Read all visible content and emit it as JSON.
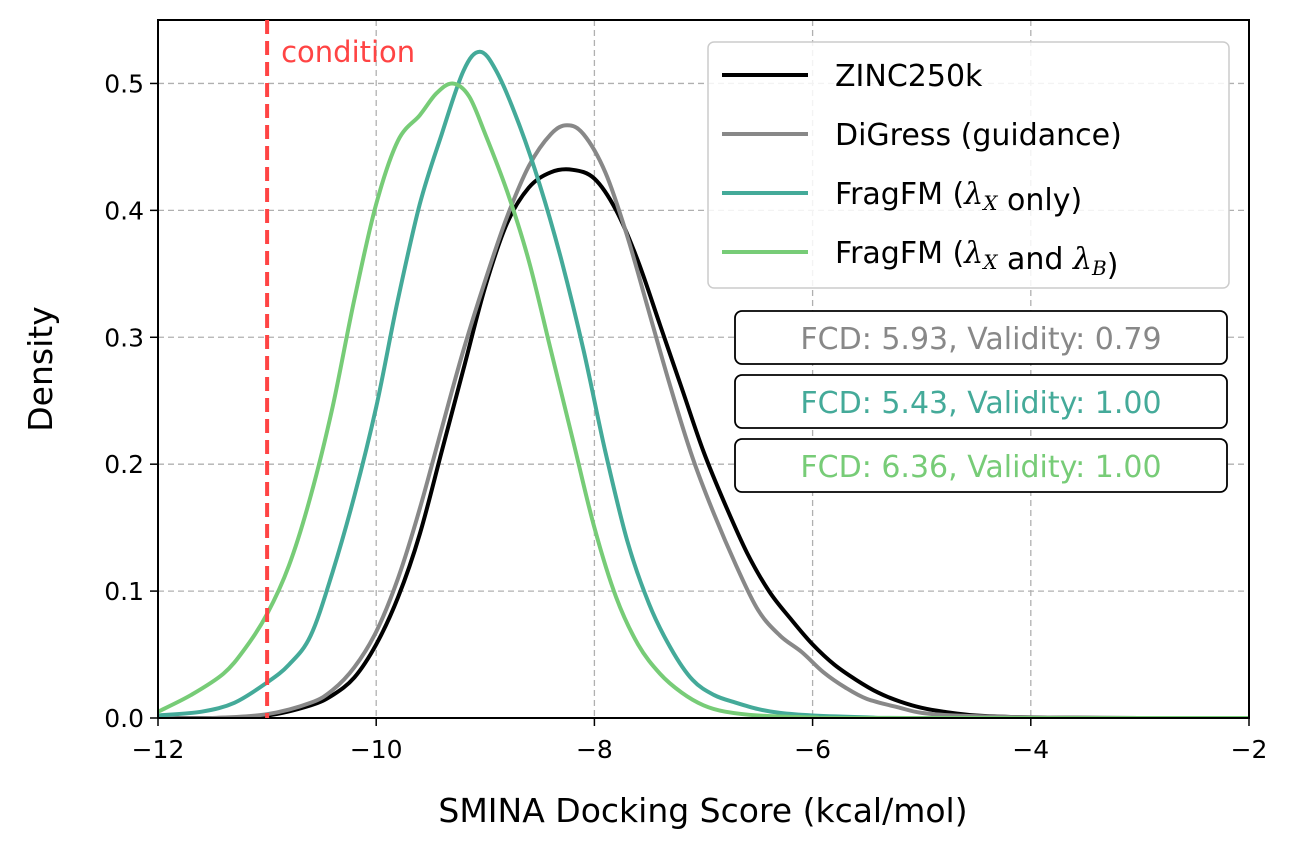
{
  "chart_data": {
    "type": "line",
    "title": "",
    "xlabel": "SMINA Docking Score (kcal/mol)",
    "ylabel": "Density",
    "xlim": [
      -12,
      -2
    ],
    "ylim": [
      0,
      0.55
    ],
    "grid": true,
    "legend_placement": "top-right",
    "x_ticks": [
      -12,
      -10,
      -8,
      -6,
      -4,
      -2
    ],
    "x_tick_labels": [
      "−12",
      "−10",
      "−8",
      "−6",
      "−4",
      "−2"
    ],
    "y_ticks": [
      0.0,
      0.1,
      0.2,
      0.3,
      0.4,
      0.5
    ],
    "y_tick_labels": [
      "0.0",
      "0.1",
      "0.2",
      "0.3",
      "0.4",
      "0.5"
    ],
    "condition": {
      "x": -11,
      "label": "condition",
      "color": "#ff4444"
    },
    "series": [
      {
        "name": "ZINC250k",
        "legend_parts": [
          {
            "t": "ZINC250k",
            "i": false
          }
        ],
        "color": "#000000",
        "points": [
          [
            -12,
            0
          ],
          [
            -11.5,
            0
          ],
          [
            -11,
            0.002
          ],
          [
            -10.6,
            0.01
          ],
          [
            -10.4,
            0.018
          ],
          [
            -10.2,
            0.032
          ],
          [
            -10,
            0.058
          ],
          [
            -9.8,
            0.095
          ],
          [
            -9.6,
            0.145
          ],
          [
            -9.4,
            0.21
          ],
          [
            -9.2,
            0.275
          ],
          [
            -9,
            0.34
          ],
          [
            -8.8,
            0.39
          ],
          [
            -8.6,
            0.418
          ],
          [
            -8.4,
            0.43
          ],
          [
            -8.2,
            0.432
          ],
          [
            -8,
            0.425
          ],
          [
            -7.8,
            0.4
          ],
          [
            -7.6,
            0.36
          ],
          [
            -7.4,
            0.31
          ],
          [
            -7.2,
            0.26
          ],
          [
            -7,
            0.21
          ],
          [
            -6.8,
            0.168
          ],
          [
            -6.6,
            0.13
          ],
          [
            -6.4,
            0.1
          ],
          [
            -6.2,
            0.078
          ],
          [
            -6,
            0.058
          ],
          [
            -5.8,
            0.042
          ],
          [
            -5.6,
            0.03
          ],
          [
            -5.4,
            0.02
          ],
          [
            -5.2,
            0.013
          ],
          [
            -5,
            0.008
          ],
          [
            -4.8,
            0.005
          ],
          [
            -4.5,
            0.002
          ],
          [
            -4,
            0.0005
          ],
          [
            -3,
            0
          ],
          [
            -2,
            0
          ]
        ]
      },
      {
        "name": "DiGress (guidance)",
        "legend_parts": [
          {
            "t": "DiGress (guidance)",
            "i": false
          }
        ],
        "color": "#888888",
        "points": [
          [
            -12,
            0
          ],
          [
            -11.5,
            0
          ],
          [
            -11,
            0.003
          ],
          [
            -10.6,
            0.012
          ],
          [
            -10.4,
            0.022
          ],
          [
            -10.2,
            0.04
          ],
          [
            -10,
            0.068
          ],
          [
            -9.8,
            0.11
          ],
          [
            -9.6,
            0.165
          ],
          [
            -9.4,
            0.228
          ],
          [
            -9.2,
            0.29
          ],
          [
            -9,
            0.345
          ],
          [
            -8.8,
            0.395
          ],
          [
            -8.6,
            0.435
          ],
          [
            -8.4,
            0.46
          ],
          [
            -8.25,
            0.467
          ],
          [
            -8.1,
            0.46
          ],
          [
            -7.9,
            0.43
          ],
          [
            -7.7,
            0.38
          ],
          [
            -7.5,
            0.32
          ],
          [
            -7.3,
            0.26
          ],
          [
            -7.1,
            0.205
          ],
          [
            -6.9,
            0.16
          ],
          [
            -6.7,
            0.12
          ],
          [
            -6.5,
            0.085
          ],
          [
            -6.3,
            0.065
          ],
          [
            -6.1,
            0.052
          ],
          [
            -5.9,
            0.036
          ],
          [
            -5.7,
            0.024
          ],
          [
            -5.5,
            0.015
          ],
          [
            -5.2,
            0.008
          ],
          [
            -5,
            0.004
          ],
          [
            -4.7,
            0.002
          ],
          [
            -4,
            0.0005
          ],
          [
            -3,
            0
          ],
          [
            -2,
            0
          ]
        ]
      },
      {
        "name": "FragFM (λX only)",
        "legend_parts": [
          {
            "t": "FragFM (",
            "i": false
          },
          {
            "t": "λ",
            "i": true
          },
          {
            "t": "X",
            "i": true,
            "sub": true
          },
          {
            "t": " only)",
            "i": false
          }
        ],
        "color": "#44aa99",
        "points": [
          [
            -12,
            0.002
          ],
          [
            -11.6,
            0.005
          ],
          [
            -11.3,
            0.012
          ],
          [
            -11,
            0.028
          ],
          [
            -10.8,
            0.042
          ],
          [
            -10.6,
            0.065
          ],
          [
            -10.4,
            0.115
          ],
          [
            -10.2,
            0.175
          ],
          [
            -10,
            0.245
          ],
          [
            -9.8,
            0.33
          ],
          [
            -9.6,
            0.405
          ],
          [
            -9.4,
            0.46
          ],
          [
            -9.2,
            0.51
          ],
          [
            -9.05,
            0.525
          ],
          [
            -8.9,
            0.51
          ],
          [
            -8.7,
            0.47
          ],
          [
            -8.5,
            0.42
          ],
          [
            -8.3,
            0.36
          ],
          [
            -8.1,
            0.29
          ],
          [
            -7.9,
            0.21
          ],
          [
            -7.7,
            0.14
          ],
          [
            -7.5,
            0.09
          ],
          [
            -7.3,
            0.055
          ],
          [
            -7.1,
            0.03
          ],
          [
            -6.9,
            0.018
          ],
          [
            -6.7,
            0.012
          ],
          [
            -6.5,
            0.007
          ],
          [
            -6.3,
            0.004
          ],
          [
            -6,
            0.002
          ],
          [
            -5.5,
            0.0005
          ],
          [
            -5,
            0
          ],
          [
            -2,
            0
          ]
        ]
      },
      {
        "name": "FragFM (λX and λB)",
        "legend_parts": [
          {
            "t": "FragFM (",
            "i": false
          },
          {
            "t": "λ",
            "i": true
          },
          {
            "t": "X",
            "i": true,
            "sub": true
          },
          {
            "t": " and ",
            "i": false
          },
          {
            "t": "λ",
            "i": true
          },
          {
            "t": "B",
            "i": true,
            "sub": true
          },
          {
            "t": ")",
            "i": false
          }
        ],
        "color": "#77cc77",
        "points": [
          [
            -12,
            0.005
          ],
          [
            -11.7,
            0.018
          ],
          [
            -11.4,
            0.035
          ],
          [
            -11.2,
            0.055
          ],
          [
            -11,
            0.082
          ],
          [
            -10.8,
            0.12
          ],
          [
            -10.6,
            0.175
          ],
          [
            -10.4,
            0.245
          ],
          [
            -10.2,
            0.33
          ],
          [
            -10,
            0.405
          ],
          [
            -9.8,
            0.455
          ],
          [
            -9.6,
            0.475
          ],
          [
            -9.45,
            0.492
          ],
          [
            -9.3,
            0.5
          ],
          [
            -9.15,
            0.49
          ],
          [
            -9,
            0.46
          ],
          [
            -8.8,
            0.415
          ],
          [
            -8.6,
            0.36
          ],
          [
            -8.4,
            0.29
          ],
          [
            -8.2,
            0.22
          ],
          [
            -8,
            0.15
          ],
          [
            -7.8,
            0.095
          ],
          [
            -7.6,
            0.058
          ],
          [
            -7.4,
            0.035
          ],
          [
            -7.2,
            0.02
          ],
          [
            -7,
            0.01
          ],
          [
            -6.8,
            0.005
          ],
          [
            -6.5,
            0.002
          ],
          [
            -6,
            0.0005
          ],
          [
            -5.5,
            0
          ],
          [
            -2,
            0
          ]
        ]
      }
    ],
    "annotations": [
      {
        "text": "FCD: 5.93, Validity: 0.79",
        "color": "#888888"
      },
      {
        "text": "FCD: 5.43, Validity: 1.00",
        "color": "#44aa99"
      },
      {
        "text": "FCD: 6.36, Validity: 1.00",
        "color": "#77cc77"
      }
    ]
  }
}
